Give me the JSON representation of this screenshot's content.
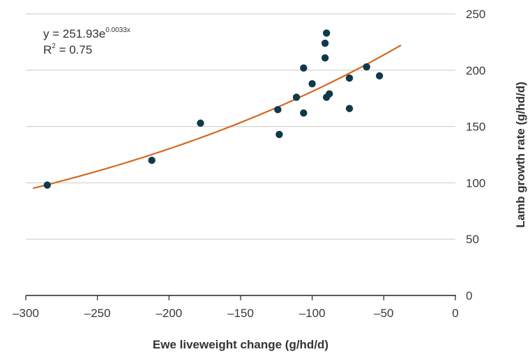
{
  "chart_data": {
    "type": "scatter",
    "xlabel": "Ewe liveweight change (g/hd/d)",
    "ylabel": "Lamb growth rate (g/hd/d)",
    "xlim": [
      -300,
      0
    ],
    "ylim": [
      0,
      250
    ],
    "x_ticks": [
      -300,
      -250,
      -200,
      -150,
      -100,
      -50,
      0
    ],
    "y_ticks": [
      0,
      50,
      100,
      150,
      200,
      250
    ],
    "x_tick_labels": [
      "–300",
      "–250",
      "–200",
      "–150",
      "–100",
      "–50",
      "0"
    ],
    "y_tick_labels": [
      "0",
      "50",
      "100",
      "150",
      "200",
      "250"
    ],
    "grid": "horizontal",
    "y_axis_side": "right",
    "points": [
      {
        "x": -285,
        "y": 98
      },
      {
        "x": -212,
        "y": 120
      },
      {
        "x": -178,
        "y": 153
      },
      {
        "x": -124,
        "y": 165
      },
      {
        "x": -123,
        "y": 143
      },
      {
        "x": -111,
        "y": 176
      },
      {
        "x": -106,
        "y": 202
      },
      {
        "x": -106,
        "y": 162
      },
      {
        "x": -100,
        "y": 188
      },
      {
        "x": -91,
        "y": 224
      },
      {
        "x": -91,
        "y": 211
      },
      {
        "x": -90,
        "y": 233
      },
      {
        "x": -90,
        "y": 176
      },
      {
        "x": -88,
        "y": 179
      },
      {
        "x": -74,
        "y": 193
      },
      {
        "x": -74,
        "y": 166
      },
      {
        "x": -62,
        "y": 203
      },
      {
        "x": -53,
        "y": 195
      }
    ],
    "trendline": {
      "type": "exponential",
      "a": 251.93,
      "b": 0.0033,
      "x_range": [
        -295,
        -38
      ],
      "equation_base": "y = 251.93e",
      "equation_exponent": "0.0033x",
      "r2_label": "R",
      "r2_exponent": "2",
      "r2_value": " = 0.75"
    },
    "colors": {
      "points": "#0f3a4a",
      "trendline": "#d4691e",
      "grid": "#c8c8c8",
      "axis": "#222222"
    }
  }
}
